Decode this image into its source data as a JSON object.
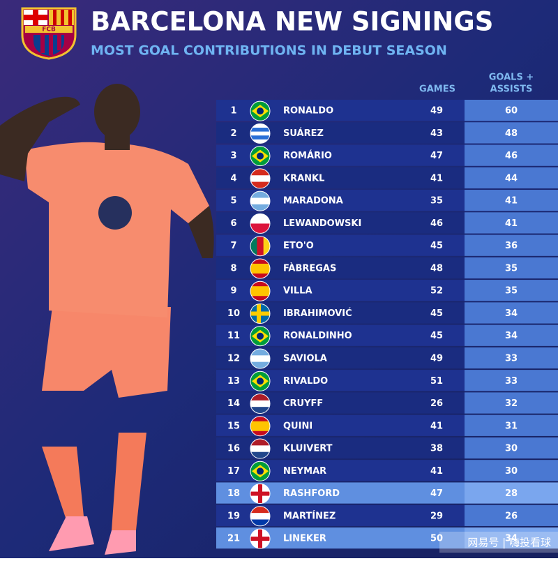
{
  "header": {
    "title": "BARCELONA NEW SIGNINGS",
    "subtitle": "MOST GOAL CONTRIBUTIONS IN DEBUT SEASON",
    "crest": "FCB"
  },
  "table": {
    "columns": [
      "GAMES",
      "GOALS +",
      "ASSISTS"
    ],
    "rows": [
      [
        1,
        "RONALDO",
        49,
        60
      ],
      [
        2,
        "SUÁREZ",
        43,
        48
      ],
      [
        3,
        "ROMÁRIO",
        47,
        46
      ],
      [
        4,
        "KRANKL",
        41,
        44
      ],
      [
        5,
        "MARADONA",
        35,
        41
      ],
      [
        6,
        "LEWANDOWSKI",
        46,
        41
      ],
      [
        7,
        "ETO'O",
        45,
        36
      ],
      [
        8,
        "FÀBREGAS",
        48,
        35
      ],
      [
        9,
        "VILLA",
        52,
        35
      ],
      [
        10,
        "IBRAHIMOVIĆ",
        45,
        34
      ],
      [
        11,
        "RONALDINHO",
        45,
        34
      ],
      [
        12,
        "SAVIOLA",
        49,
        33
      ],
      [
        13,
        "RIVALDO",
        51,
        33
      ],
      [
        14,
        "CRUYFF",
        26,
        32
      ],
      [
        15,
        "QUINI",
        41,
        31
      ],
      [
        16,
        "KLUIVERT",
        38,
        30
      ],
      [
        17,
        "NEYMAR",
        41,
        30
      ],
      [
        18,
        "RASHFORD",
        47,
        28
      ],
      [
        19,
        "MARTÍNEZ",
        29,
        26
      ],
      [
        21,
        "LINEKER",
        50,
        34
      ]
    ]
  },
  "watermark": "网易号 | 嗨投看球"
}
